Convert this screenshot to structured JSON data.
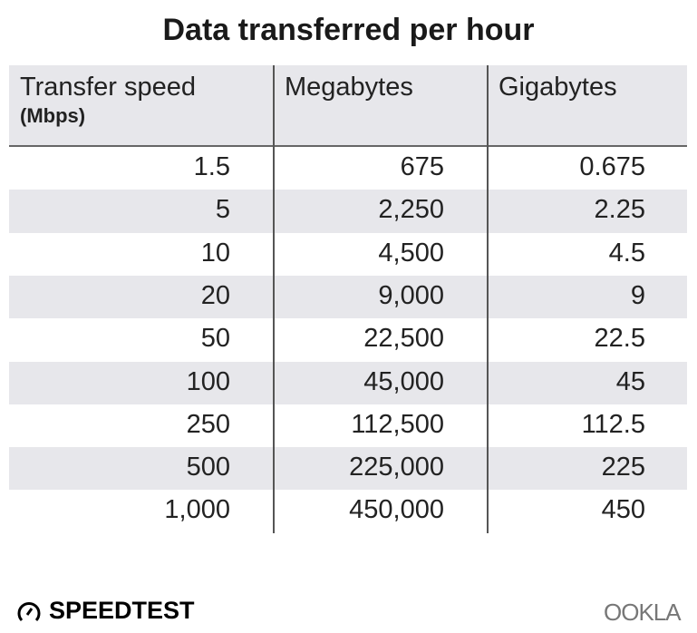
{
  "chart_data": {
    "type": "table",
    "title": "Data transferred per hour",
    "columns": [
      {
        "label": "Transfer speed",
        "sublabel": "(Mbps)"
      },
      {
        "label": "Megabytes"
      },
      {
        "label": "Gigabytes"
      }
    ],
    "rows": [
      [
        "1.5",
        "675",
        "0.675"
      ],
      [
        "5",
        "2,250",
        "2.25"
      ],
      [
        "10",
        "4,500",
        "4.5"
      ],
      [
        "20",
        "9,000",
        "9"
      ],
      [
        "50",
        "22,500",
        "22.5"
      ],
      [
        "100",
        "45,000",
        "45"
      ],
      [
        "250",
        "112,500",
        "112.5"
      ],
      [
        "500",
        "225,000",
        "225"
      ],
      [
        "1,000",
        "450,000",
        "450"
      ]
    ]
  },
  "branding": {
    "left": "SPEEDTEST",
    "right": "OOKLA"
  },
  "colors": {
    "header_bg": "#e7e7eb",
    "alt_row_bg": "#e7e7eb",
    "divider": "#555555"
  }
}
